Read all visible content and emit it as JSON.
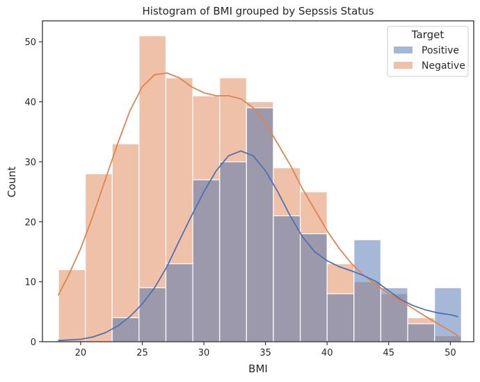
{
  "chart_data": {
    "type": "histogram",
    "title": "Histogram of BMI grouped by Sepssis  Status",
    "xlabel": "BMI",
    "ylabel": "Count",
    "xlim": [
      16.9,
      51.9
    ],
    "ylim": [
      0,
      53.5
    ],
    "xticks": [
      20,
      25,
      30,
      35,
      40,
      45,
      50
    ],
    "yticks": [
      0,
      10,
      20,
      30,
      40,
      50
    ],
    "bin_edges": [
      18.2,
      20.38,
      22.56,
      24.74,
      26.92,
      29.1,
      31.28,
      33.46,
      35.64,
      37.82,
      40.0,
      42.18,
      44.36,
      46.54,
      48.72,
      50.9
    ],
    "legend": {
      "title": "Target",
      "position": "upper right"
    },
    "series": [
      {
        "name": "Positive",
        "color": "#4c72b0",
        "values": [
          0,
          0,
          4,
          9,
          13,
          27,
          30,
          39,
          21,
          18,
          8,
          17,
          9,
          3,
          9
        ],
        "kde": [
          [
            18.2,
            0.2
          ],
          [
            20,
            0.4
          ],
          [
            21,
            0.8
          ],
          [
            22,
            1.5
          ],
          [
            23,
            2.6
          ],
          [
            24,
            4.2
          ],
          [
            25,
            6.3
          ],
          [
            26,
            9.0
          ],
          [
            27,
            12.5
          ],
          [
            28,
            16.8
          ],
          [
            29,
            21.0
          ],
          [
            30,
            25.0
          ],
          [
            31,
            28.5
          ],
          [
            32,
            31.0
          ],
          [
            33,
            31.8
          ],
          [
            34,
            31.0
          ],
          [
            35,
            28.5
          ],
          [
            36,
            25.0
          ],
          [
            37,
            21.0
          ],
          [
            38,
            17.5
          ],
          [
            39,
            15.0
          ],
          [
            40,
            13.5
          ],
          [
            41,
            12.5
          ],
          [
            42,
            11.8
          ],
          [
            43,
            11.0
          ],
          [
            44,
            10.0
          ],
          [
            45,
            8.5
          ],
          [
            46,
            7.0
          ],
          [
            47,
            6.0
          ],
          [
            48,
            5.3
          ],
          [
            49,
            4.8
          ],
          [
            50,
            4.5
          ],
          [
            50.6,
            4.2
          ]
        ]
      },
      {
        "name": "Negative",
        "color": "#dd8452",
        "values": [
          12,
          28,
          33,
          51,
          44,
          41,
          44,
          40,
          29,
          25,
          13,
          10,
          8,
          4,
          1
        ],
        "kde": [
          [
            18.2,
            7.8
          ],
          [
            19,
            11.0
          ],
          [
            20,
            15.5
          ],
          [
            21,
            21.0
          ],
          [
            22,
            27.0
          ],
          [
            23,
            33.0
          ],
          [
            24,
            38.5
          ],
          [
            25,
            42.5
          ],
          [
            26,
            44.5
          ],
          [
            27,
            44.8
          ],
          [
            28,
            44.0
          ],
          [
            29,
            42.5
          ],
          [
            30,
            41.5
          ],
          [
            31,
            41.0
          ],
          [
            32,
            41.0
          ],
          [
            33,
            40.5
          ],
          [
            34,
            39.0
          ],
          [
            35,
            36.5
          ],
          [
            36,
            33.0
          ],
          [
            37,
            29.5
          ],
          [
            38,
            25.5
          ],
          [
            39,
            22.0
          ],
          [
            40,
            18.5
          ],
          [
            41,
            15.5
          ],
          [
            42,
            13.0
          ],
          [
            43,
            11.0
          ],
          [
            44,
            9.5
          ],
          [
            45,
            8.0
          ],
          [
            46,
            6.8
          ],
          [
            47,
            5.5
          ],
          [
            48,
            4.2
          ],
          [
            49,
            3.0
          ],
          [
            50,
            1.8
          ],
          [
            50.6,
            1.0
          ]
        ]
      }
    ]
  }
}
